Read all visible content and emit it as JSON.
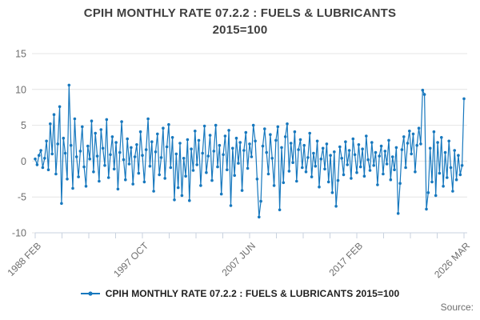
{
  "title": {
    "line1": "CPIH MONTHLY RATE 07.2.2 : FUELS & LUBRICANTS",
    "line2": "2015=100"
  },
  "legend": {
    "label": "CPIH MONTHLY RATE 07.2.2 : FUELS & LUBRICANTS 2015=100"
  },
  "source": {
    "label": "Source:"
  },
  "colors": {
    "series": "#1778be",
    "grid": "#e4e4e4",
    "axis": "#c9d2df",
    "tick_label": "#6e6e6e",
    "title_text": "#3f3f3f",
    "legend_text": "#1f1f1f",
    "source_text": "#6e6e6e"
  },
  "chart_data": {
    "type": "line",
    "title": "CPIH MONTHLY RATE 07.2.2 : FUELS & LUBRICANTS 2015=100",
    "xlabel": "",
    "ylabel": "",
    "x_tick_labels": [
      "1988 FEB",
      "1997 OCT",
      "2007 JUN",
      "2017 FEB",
      "2026 MAR"
    ],
    "minor_ticks_per_major": 4,
    "ylim": [
      -10,
      15
    ],
    "yticks": [
      15,
      10,
      5,
      0,
      -5,
      -10
    ],
    "grid": "horizontal",
    "legend_position": "bottom",
    "note": "Monthly percentage-change series 1988 FEB to 2026 MAR; values estimated from pixels at ~2-month sampling",
    "series": [
      {
        "name": "CPIH MONTHLY RATE 07.2.2 : FUELS & LUBRICANTS 2015=100",
        "color": "#1778be",
        "marker": "circle",
        "values": [
          0.3,
          -0.5,
          0.8,
          1.5,
          -0.9,
          0.4,
          2.8,
          -1.2,
          5.2,
          1.0,
          6.5,
          -1.8,
          2.4,
          7.6,
          -5.9,
          3.2,
          1.1,
          -2.5,
          10.6,
          2.2,
          -3.8,
          5.9,
          0.6,
          -2.2,
          1.4,
          4.8,
          -0.8,
          -3.5,
          2.1,
          0.3,
          5.6,
          -1.5,
          3.9,
          0.7,
          -2.8,
          4.4,
          1.8,
          -0.6,
          5.8,
          -2.3,
          0.9,
          3.4,
          -1.1,
          2.6,
          -3.9,
          1.2,
          5.5,
          0.2,
          -2.6,
          3.1,
          -0.4,
          1.9,
          -3.2,
          0.6,
          2.3,
          -1.7,
          4.1,
          0.8,
          -2.9,
          1.6,
          5.9,
          -0.7,
          2.7,
          -4.2,
          1.3,
          3.8,
          -1.9,
          0.5,
          4.6,
          -2.4,
          2.0,
          5.1,
          -0.9,
          3.3,
          -5.4,
          1.0,
          -3.7,
          2.5,
          -4.8,
          0.4,
          -2.1,
          3.0,
          -5.5,
          1.7,
          -1.3,
          4.2,
          -0.5,
          2.9,
          -3.4,
          1.1,
          4.9,
          -1.6,
          0.7,
          3.6,
          -2.7,
          1.4,
          5.0,
          -0.8,
          2.2,
          -4.6,
          0.9,
          3.5,
          -1.2,
          4.3,
          -6.2,
          1.8,
          -2.0,
          3.2,
          -0.3,
          2.6,
          -4.1,
          1.5,
          4.0,
          -1.0,
          2.4,
          0.6,
          5.0,
          2.8,
          -2.5,
          -7.8,
          -5.6,
          2.1,
          4.5,
          1.2,
          -1.8,
          3.7,
          0.4,
          -3.4,
          2.9,
          4.8,
          -6.8,
          1.9,
          -3.0,
          3.4,
          5.2,
          -1.4,
          2.5,
          -0.2,
          4.1,
          -2.8,
          1.6,
          3.0,
          -0.9,
          2.2,
          -1.5,
          0.5,
          3.9,
          -2.2,
          1.1,
          -0.7,
          2.8,
          -3.6,
          0.3,
          1.8,
          -1.1,
          2.4,
          -2.9,
          0.8,
          -4.4,
          1.3,
          -6.3,
          -2.7,
          2.0,
          0.4,
          -1.9,
          2.7,
          -0.5,
          1.5,
          -2.4,
          3.1,
          0.9,
          -1.6,
          2.3,
          -0.8,
          1.7,
          -2.1,
          3.5,
          0.2,
          -1.3,
          2.6,
          -0.6,
          1.2,
          -3.3,
          0.7,
          2.1,
          -1.8,
          1.4,
          -0.4,
          2.9,
          -2.6,
          0.6,
          -1.2,
          1.9,
          -7.3,
          -3.1,
          1.6,
          3.4,
          -0.9,
          2.5,
          4.2,
          1.0,
          3.8,
          -1.5,
          2.2,
          4.6,
          2.4,
          9.9,
          9.3,
          -6.7,
          -4.4,
          1.8,
          -2.9,
          4.1,
          -4.8,
          2.6,
          -1.7,
          3.3,
          -3.5,
          1.2,
          -2.3,
          2.8,
          -0.9,
          -4.2,
          1.5,
          -2.6,
          0.8,
          -1.9,
          -0.6,
          8.7
        ]
      }
    ]
  }
}
